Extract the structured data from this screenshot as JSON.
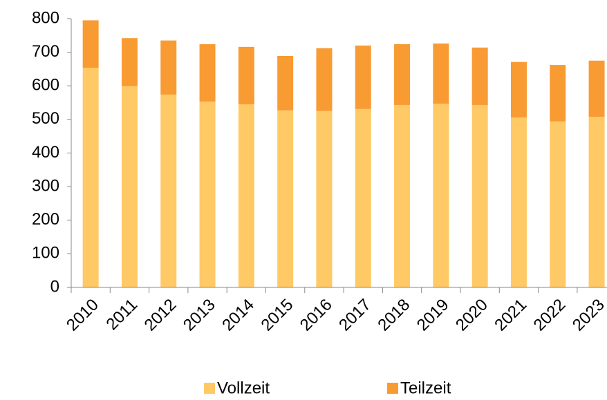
{
  "chart_data": {
    "type": "stacked_bar",
    "categories": [
      "2010",
      "2011",
      "2012",
      "2013",
      "2014",
      "2015",
      "2016",
      "2017",
      "2018",
      "2019",
      "2020",
      "2021",
      "2022",
      "2023"
    ],
    "series": [
      {
        "name": "Vollzeit",
        "color": "#ffc966",
        "values": [
          654,
          599,
          574,
          553,
          545,
          527,
          525,
          531,
          543,
          547,
          543,
          506,
          494,
          508
        ]
      },
      {
        "name": "Teilzeit",
        "color": "#f89b33",
        "values": [
          141,
          143,
          161,
          171,
          171,
          162,
          187,
          189,
          181,
          179,
          171,
          165,
          168,
          167
        ]
      }
    ],
    "ylim": [
      0,
      800
    ],
    "yticks": [
      0,
      100,
      200,
      300,
      400,
      500,
      600,
      700,
      800
    ],
    "grid": false,
    "legend": "bottom"
  }
}
